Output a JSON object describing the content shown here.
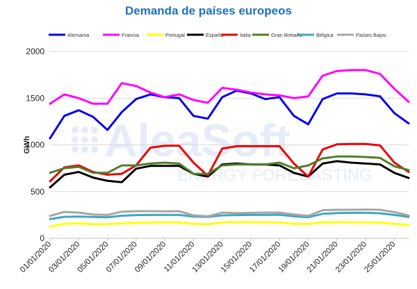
{
  "chart_data": {
    "type": "line",
    "title": "Demanda de países europeos",
    "xlabel": "",
    "ylabel": "GWh",
    "ylim": [
      0,
      2000
    ],
    "yticks": [
      0,
      500,
      1000,
      1500,
      2000
    ],
    "grid": true,
    "legend_position": "top",
    "x": [
      "01/01/2020",
      "02/01/2020",
      "03/01/2020",
      "04/01/2020",
      "05/01/2020",
      "06/01/2020",
      "07/01/2020",
      "08/01/2020",
      "09/01/2020",
      "10/01/2020",
      "11/01/2020",
      "12/01/2020",
      "13/01/2020",
      "14/01/2020",
      "15/01/2020",
      "16/01/2020",
      "17/01/2020",
      "18/01/2020",
      "19/01/2020",
      "20/01/2020",
      "21/01/2020",
      "22/01/2020",
      "23/01/2020",
      "24/01/2020",
      "25/01/2020",
      "26/01/2020"
    ],
    "xtick_labels": [
      "01/01/2020",
      "03/01/2020",
      "05/01/2020",
      "07/01/2020",
      "09/01/2020",
      "11/01/2020",
      "13/01/2020",
      "15/01/2020",
      "17/01/2020",
      "19/01/2020",
      "21/01/2020",
      "23/01/2020",
      "25/01/2020"
    ],
    "series": [
      {
        "name": "Alemania",
        "color": "#0000ee",
        "values": [
          1070,
          1310,
          1370,
          1300,
          1160,
          1350,
          1490,
          1540,
          1510,
          1500,
          1310,
          1280,
          1510,
          1580,
          1550,
          1490,
          1510,
          1310,
          1220,
          1490,
          1550,
          1550,
          1540,
          1520,
          1340,
          1230
        ]
      },
      {
        "name": "Francia",
        "color": "#ff00ff",
        "values": [
          1440,
          1540,
          1500,
          1440,
          1440,
          1660,
          1630,
          1560,
          1510,
          1540,
          1480,
          1450,
          1610,
          1590,
          1560,
          1540,
          1530,
          1500,
          1520,
          1740,
          1790,
          1800,
          1800,
          1760,
          1600,
          1460
        ]
      },
      {
        "name": "Portugal",
        "color": "#ffff00",
        "values": [
          125,
          155,
          160,
          150,
          150,
          160,
          165,
          168,
          170,
          170,
          155,
          150,
          170,
          172,
          172,
          170,
          168,
          155,
          155,
          170,
          172,
          170,
          170,
          168,
          155,
          140
        ]
      },
      {
        "name": "España",
        "color": "#000000",
        "values": [
          545,
          680,
          710,
          650,
          615,
          600,
          745,
          775,
          775,
          775,
          690,
          660,
          790,
          800,
          790,
          790,
          780,
          700,
          660,
          800,
          825,
          810,
          800,
          790,
          700,
          645
        ]
      },
      {
        "name": "Italia",
        "color": "#ee0000",
        "values": [
          610,
          760,
          780,
          710,
          680,
          690,
          780,
          970,
          990,
          990,
          810,
          670,
          960,
          985,
          985,
          985,
          985,
          800,
          660,
          950,
          1005,
          1010,
          1010,
          995,
          810,
          710
        ]
      },
      {
        "name": "Gran Bretaña",
        "color": "#4f7e2a",
        "values": [
          700,
          750,
          765,
          700,
          700,
          780,
          780,
          800,
          810,
          800,
          690,
          690,
          780,
          790,
          790,
          790,
          810,
          750,
          780,
          855,
          875,
          875,
          870,
          860,
          770,
          730
        ]
      },
      {
        "name": "Bélgica",
        "color": "#3fa7bf",
        "values": [
          205,
          230,
          232,
          228,
          225,
          242,
          248,
          250,
          250,
          250,
          232,
          228,
          245,
          248,
          250,
          250,
          252,
          235,
          225,
          262,
          270,
          272,
          272,
          268,
          250,
          228
        ]
      },
      {
        "name": "Países Bajos",
        "color": "#a6a6a6",
        "values": [
          240,
          282,
          275,
          255,
          250,
          285,
          290,
          290,
          288,
          290,
          245,
          235,
          275,
          270,
          272,
          275,
          275,
          255,
          240,
          300,
          305,
          305,
          308,
          305,
          280,
          245
        ]
      }
    ]
  },
  "watermark": {
    "brand": "AleaSoft",
    "tagline": "ENERGY FORECASTING"
  }
}
